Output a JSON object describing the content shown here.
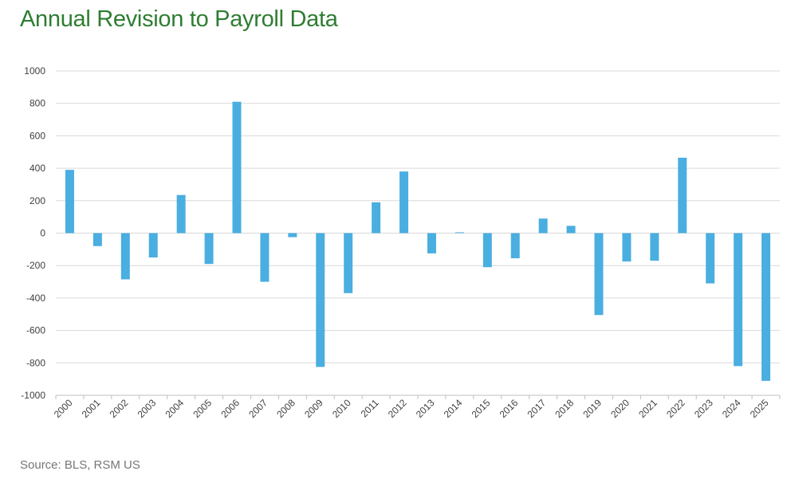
{
  "chart_data": {
    "type": "bar",
    "title": "Annual Revision to Payroll Data",
    "xlabel": "",
    "ylabel": "",
    "categories": [
      "2000",
      "2001",
      "2002",
      "2003",
      "2004",
      "2005",
      "2006",
      "2007",
      "2008",
      "2009",
      "2010",
      "2011",
      "2012",
      "2013",
      "2014",
      "2015",
      "2016",
      "2017",
      "2018",
      "2019",
      "2020",
      "2021",
      "2022",
      "2023",
      "2024",
      "2025"
    ],
    "values": [
      390,
      -80,
      -285,
      -150,
      235,
      -190,
      810,
      -300,
      -25,
      -825,
      -370,
      190,
      380,
      -125,
      5,
      -210,
      -155,
      90,
      45,
      -505,
      -175,
      -170,
      465,
      -310,
      -820,
      -911
    ],
    "ylim": [
      -1000,
      1000
    ],
    "yticks": [
      1000,
      800,
      600,
      400,
      200,
      0,
      -200,
      -400,
      -600,
      -800,
      -1000
    ],
    "grid": true,
    "bar_color": "#4aaee0"
  },
  "source": "Source: BLS, RSM US"
}
